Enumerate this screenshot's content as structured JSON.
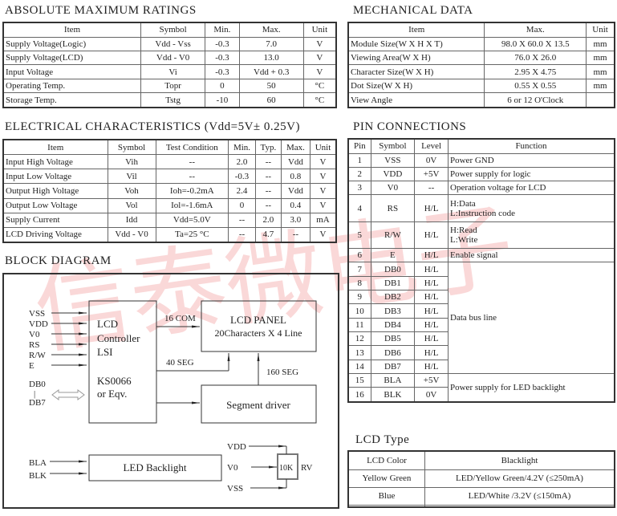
{
  "abs": {
    "title": "ABSOLUTE MAXIMUM RATINGS",
    "headers": [
      "Item",
      "Symbol",
      "Min.",
      "Max.",
      "Unit"
    ],
    "rows": [
      [
        "Supply Voltage(Logic)",
        "Vdd - Vss",
        "-0.3",
        "7.0",
        "V"
      ],
      [
        "Supply Voltage(LCD)",
        "Vdd - V0",
        "-0.3",
        "13.0",
        "V"
      ],
      [
        "Input Voltage",
        "Vi",
        "-0.3",
        "Vdd + 0.3",
        "V"
      ],
      [
        "Operating Temp.",
        "Topr",
        "0",
        "50",
        "°C"
      ],
      [
        "Storage Temp.",
        "Tstg",
        "-10",
        "60",
        "°C"
      ]
    ]
  },
  "elec": {
    "title": "ELECTRICAL CHARACTERISTICS (Vdd=5V± 0.25V)",
    "headers": [
      "Item",
      "Symbol",
      "Test Condition",
      "Min.",
      "Typ.",
      "Max.",
      "Unit"
    ],
    "rows": [
      [
        "Input High Voltage",
        "Vih",
        "--",
        "2.0",
        "--",
        "Vdd",
        "V"
      ],
      [
        "Input Low Voltage",
        "Vil",
        "--",
        "-0.3",
        "--",
        "0.8",
        "V"
      ],
      [
        "Output High Voltage",
        "Voh",
        "Ioh=-0.2mA",
        "2.4",
        "--",
        "Vdd",
        "V"
      ],
      [
        "Output Low Voltage",
        "Vol",
        "Iol=-1.6mA",
        "0",
        "--",
        "0.4",
        "V"
      ],
      [
        "Supply Current",
        "Idd",
        "Vdd=5.0V",
        "--",
        "2.0",
        "3.0",
        "mA"
      ],
      [
        "LCD Driving Voltage",
        "Vdd - V0",
        "Ta=25 °C",
        "--",
        "4.7",
        "--",
        "V"
      ]
    ]
  },
  "mech": {
    "title": "MECHANICAL DATA",
    "headers": [
      "Item",
      "Max.",
      "Unit"
    ],
    "rows": [
      [
        "Module Size(W X H X T)",
        "98.0 X 60.0 X 13.5",
        "mm"
      ],
      [
        "Viewing Area(W X H)",
        "76.0 X 26.0",
        "mm"
      ],
      [
        "Character Size(W X H)",
        "2.95 X 4.75",
        "mm"
      ],
      [
        "Dot Size(W X H)",
        "0.55 X 0.55",
        "mm"
      ],
      [
        "View Angle",
        "6 or 12 O'Clock",
        ""
      ]
    ]
  },
  "pins": {
    "title": "PIN CONNECTIONS",
    "headers": [
      "Pin",
      "Symbol",
      "Level",
      "Function"
    ],
    "rows": [
      [
        "1",
        "VSS",
        "0V",
        "Power GND"
      ],
      [
        "2",
        "VDD",
        "+5V",
        "Power supply for logic"
      ],
      [
        "3",
        "V0",
        "--",
        "Operation voltage for LCD"
      ],
      [
        "4",
        "RS",
        "H/L",
        "H:Data\nL:Instruction code"
      ],
      [
        "5",
        "R/W",
        "H/L",
        "H:Read\nL:Write"
      ],
      [
        "6",
        "E",
        "H/L",
        "Enable signal"
      ],
      [
        "7",
        "DB0",
        "H/L"
      ],
      [
        "8",
        "DB1",
        "H/L"
      ],
      [
        "9",
        "DB2",
        "H/L"
      ],
      [
        "10",
        "DB3",
        "H/L"
      ],
      [
        "11",
        "DB4",
        "H/L"
      ],
      [
        "12",
        "DB5",
        "H/L"
      ],
      [
        "13",
        "DB6",
        "H/L"
      ],
      [
        "14",
        "DB7",
        "H/L"
      ],
      [
        "15",
        "BLA",
        "+5V"
      ],
      [
        "16",
        "BLK",
        "0V"
      ]
    ],
    "databus": "Data bus line",
    "backlight": "Power supply for LED backlight"
  },
  "lcdtype": {
    "title": "LCD Type",
    "headers": [
      "LCD Color",
      "Blacklight"
    ],
    "rows": [
      [
        "Yellow Green",
        "LED/Yellow Green/4.2V (≤250mA)"
      ],
      [
        "Blue",
        "LED/White /3.2V (≤150mA)"
      ],
      [
        "",
        ""
      ]
    ]
  },
  "block": {
    "title": "BLOCK DIAGRAM",
    "inputs": [
      "VSS",
      "VDD",
      "V0",
      "RS",
      "R/W",
      "E"
    ],
    "db0": "DB0",
    "dbsep": "|",
    "db7": "DB7",
    "ctrl": [
      "LCD",
      "Controller",
      "LSI",
      "KS0066",
      "or Eqv."
    ],
    "panel": [
      "LCD   PANEL",
      "20Characters X 4 Line"
    ],
    "seg_driver": "Segment driver",
    "com": "16 COM",
    "seg40": "40 SEG",
    "seg160": "160 SEG",
    "bla": "BLA",
    "blk": "BLK",
    "backlight": "LED Backlight",
    "vdd": "VDD",
    "v0": "V0",
    "vss": "VSS",
    "res": "10K",
    "rv": "RV"
  },
  "watermark": "信泰微电子"
}
